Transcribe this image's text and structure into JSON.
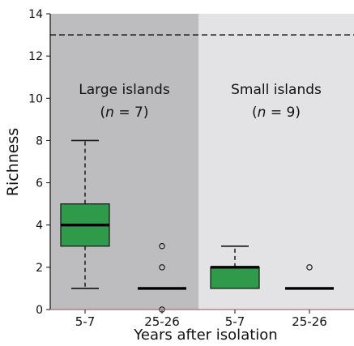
{
  "chart_data": {
    "type": "box",
    "ylabel": "Richness",
    "xlabel": "Years after isolation",
    "ylim": [
      0,
      14
    ],
    "yticks": [
      0,
      2,
      4,
      6,
      8,
      10,
      12,
      14
    ],
    "reference_line": 13,
    "panels": [
      {
        "title": "Large islands",
        "n_label": "(n = 7)",
        "n_prefix": "(",
        "n_italic": "n",
        "n_suffix": " = 7)",
        "background": "#bdbdbf",
        "boxes": [
          {
            "category": "5-7",
            "min": 1,
            "q1": 3,
            "median": 4,
            "q3": 5,
            "max": 8,
            "outliers": []
          },
          {
            "category": "25-26",
            "min": 1,
            "q1": 1,
            "median": 1,
            "q3": 1,
            "max": 1,
            "outliers": [
              0,
              2,
              3
            ]
          }
        ]
      },
      {
        "title": "Small islands",
        "n_label": "(n = 9)",
        "n_prefix": "(",
        "n_italic": "n",
        "n_suffix": " = 9)",
        "background": "#e3e3e5",
        "boxes": [
          {
            "category": "5-7",
            "min": 1,
            "q1": 1,
            "median": 2,
            "q3": 2,
            "max": 3,
            "outliers": []
          },
          {
            "category": "25-26",
            "min": 1,
            "q1": 1,
            "median": 1,
            "q3": 1,
            "max": 1,
            "outliers": [
              2
            ]
          }
        ]
      }
    ],
    "box_color": "#2e9a4a",
    "median_color": "#000000",
    "reference_line_style": "dashed"
  }
}
